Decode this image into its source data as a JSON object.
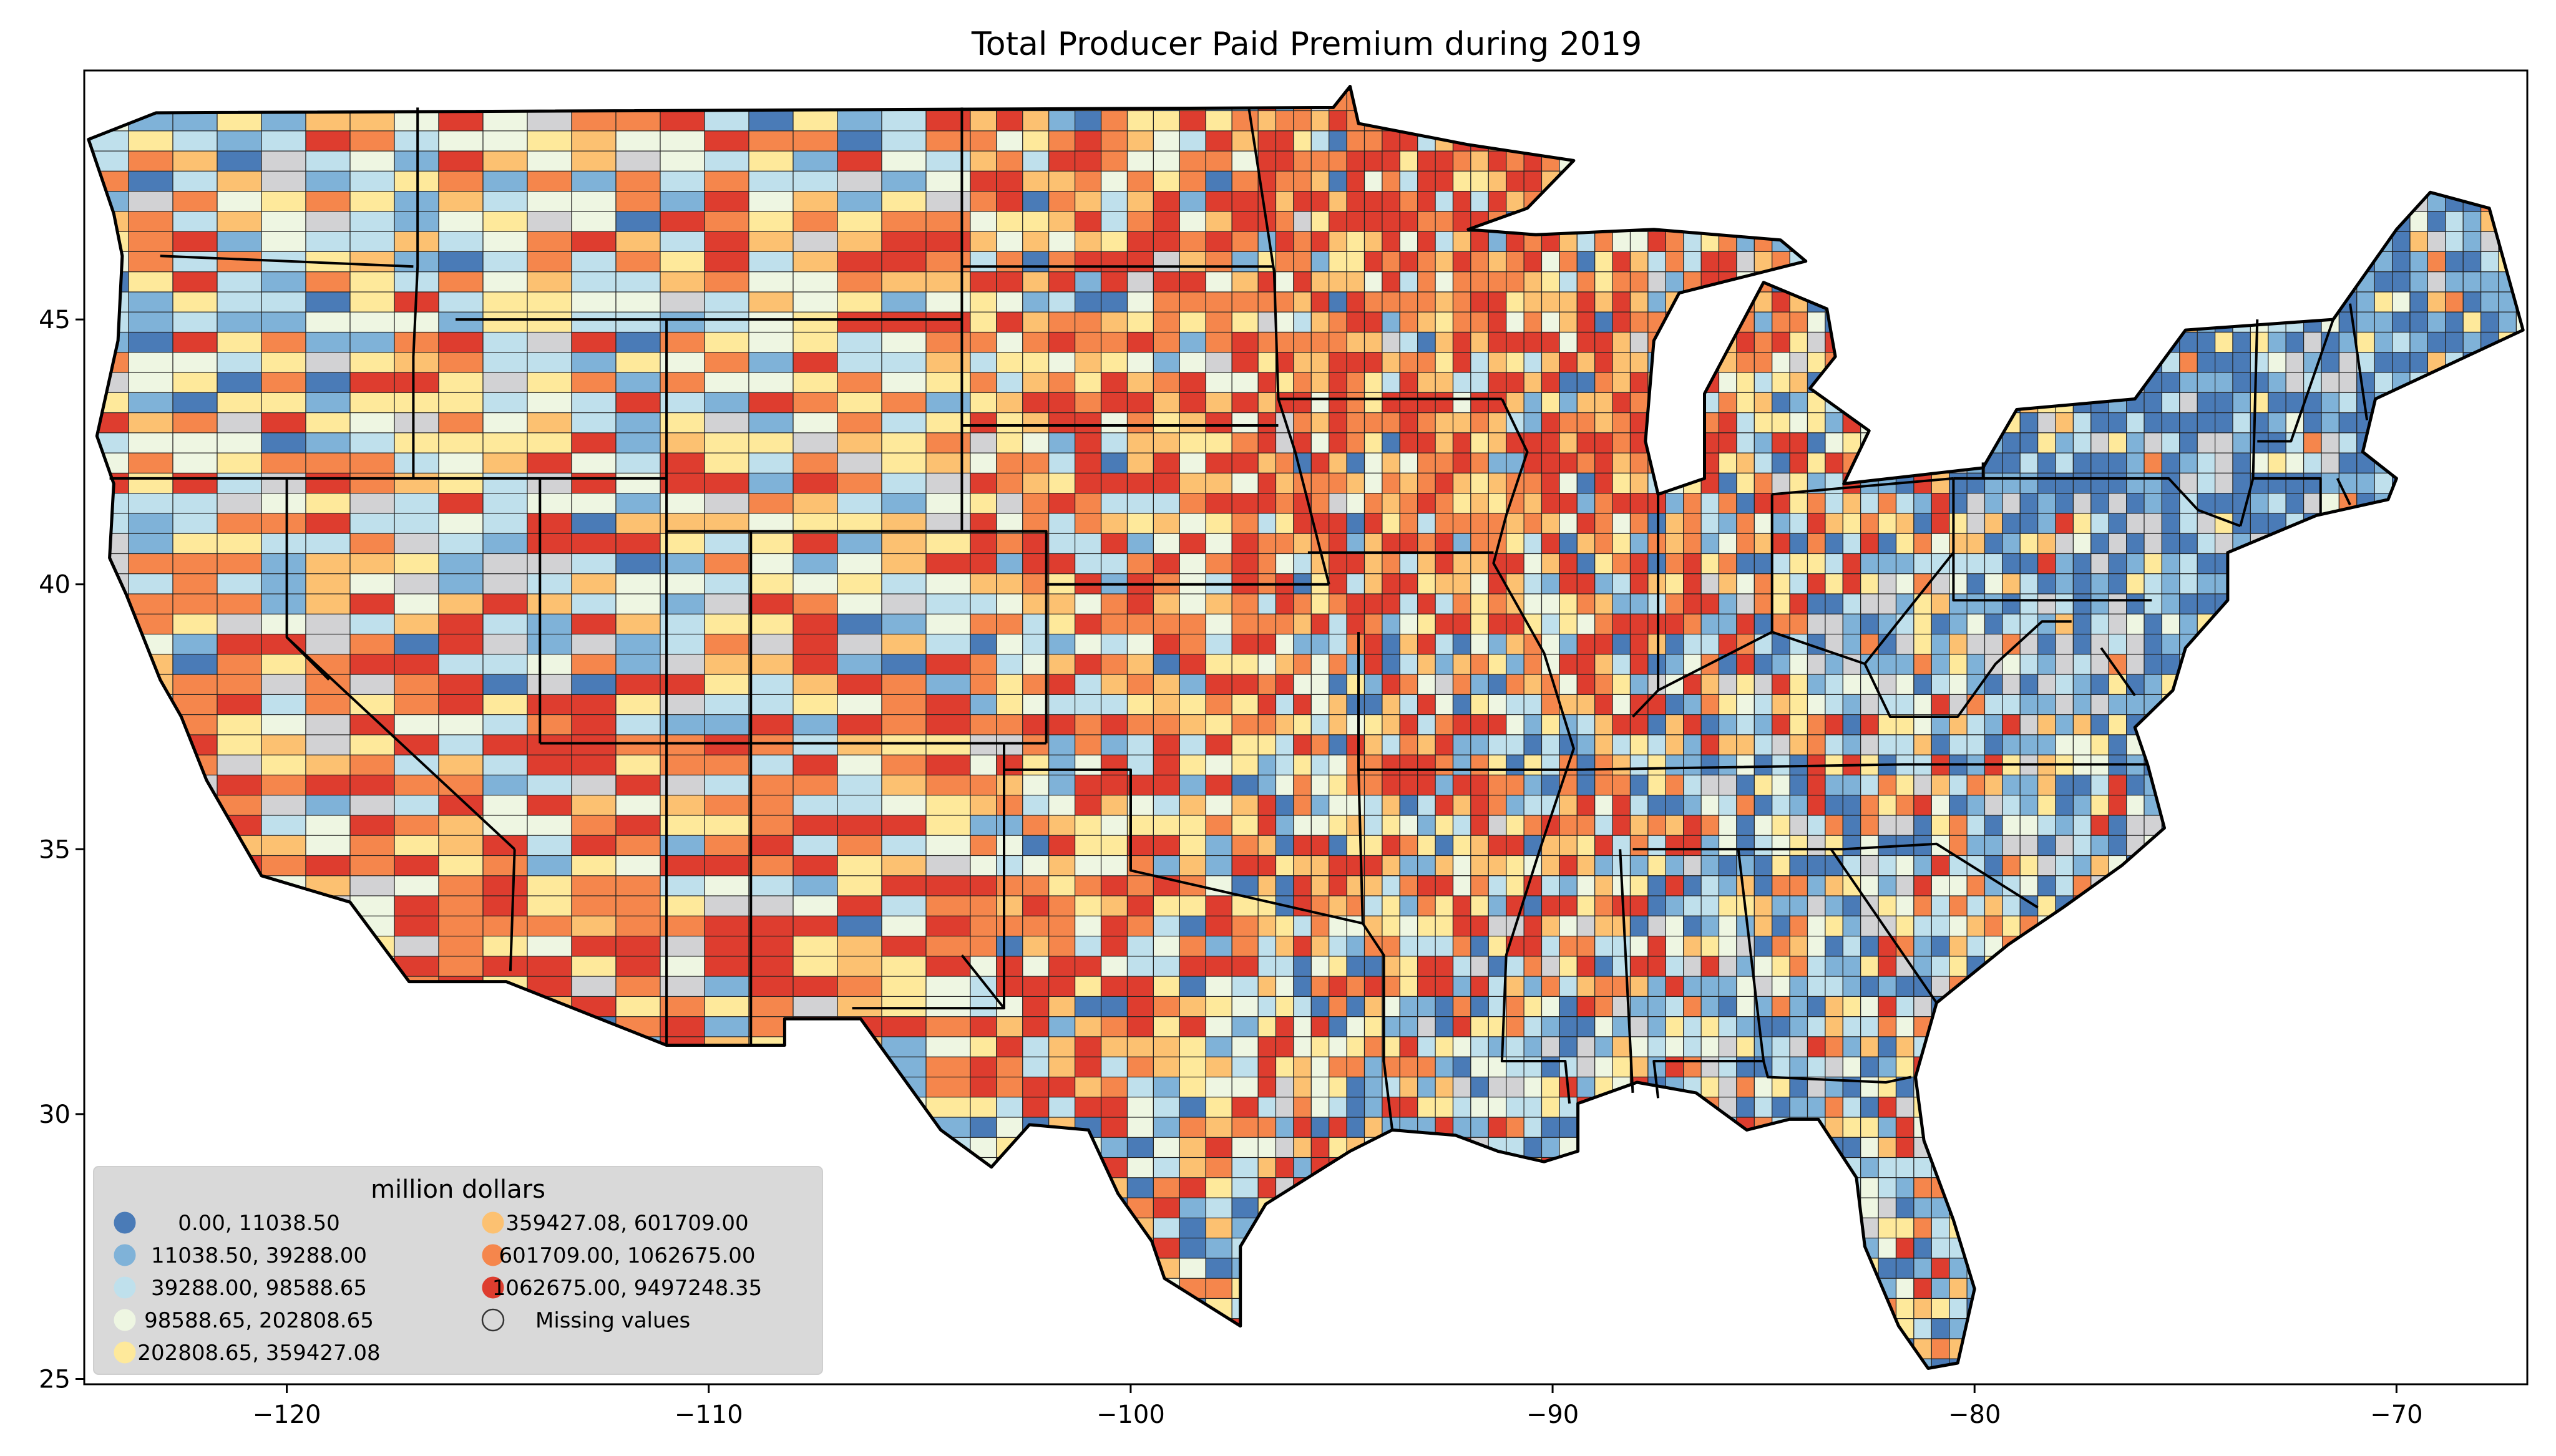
{
  "title": "Total Producer Paid Premium during 2019",
  "x_ticks": [
    {
      "value": -120,
      "label": "−120"
    },
    {
      "value": -110,
      "label": "−110"
    },
    {
      "value": -100,
      "label": "−100"
    },
    {
      "value": -90,
      "label": "−90"
    },
    {
      "value": -80,
      "label": "−80"
    },
    {
      "value": -70,
      "label": "−70"
    }
  ],
  "y_ticks": [
    {
      "value": 45,
      "label": "45"
    },
    {
      "value": 40,
      "label": "40"
    },
    {
      "value": 35,
      "label": "35"
    },
    {
      "value": 30,
      "label": "30"
    },
    {
      "value": 25,
      "label": "25"
    }
  ],
  "extent": {
    "lon": [
      -124.8,
      -66.9
    ],
    "lat": [
      24.9,
      49.7
    ]
  },
  "legend": {
    "title": "million dollars",
    "items": [
      {
        "label": "0.00,   11038.50",
        "color": "#4a7bb7"
      },
      {
        "label": "11038.50,   39288.00",
        "color": "#7fb2d8"
      },
      {
        "label": "39288.00,   98588.65",
        "color": "#bfe0ec"
      },
      {
        "label": "98588.65,  202808.65",
        "color": "#eef6e2"
      },
      {
        "label": "202808.65,  359427.08",
        "color": "#fee99b"
      },
      {
        "label": "359427.08,  601709.00",
        "color": "#fcc171"
      },
      {
        "label": "601709.00, 1062675.00",
        "color": "#f5864c"
      },
      {
        "label": "1062675.00, 9497248.35",
        "color": "#de3d2f"
      },
      {
        "label": "Missing values",
        "color": "#d2d2d4"
      }
    ]
  }
}
